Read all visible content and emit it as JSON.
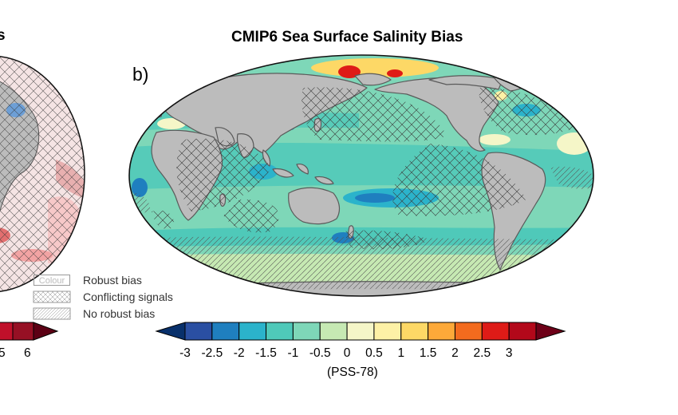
{
  "figure": {
    "left_panel_title_fragment": "s",
    "title": "CMIP6 Sea Surface Salinity Bias",
    "panel_label": "b)"
  },
  "legend": {
    "items": [
      {
        "swatch_text": "Colour",
        "label": "Robust bias",
        "pattern": "none"
      },
      {
        "swatch_text": "",
        "label": "Conflicting signals",
        "pattern": "crosshatch"
      },
      {
        "swatch_text": "",
        "label": "No robust bias",
        "pattern": "diagonal"
      }
    ]
  },
  "colorbar": {
    "ticks": [
      "-3",
      "-2.5",
      "-2",
      "-1.5",
      "-1",
      "-0.5",
      "0",
      "0.5",
      "1",
      "1.5",
      "2",
      "2.5",
      "3"
    ],
    "units": "(PSS-78)",
    "colors": [
      "#08306b",
      "#2a4fa2",
      "#1f7fbf",
      "#2bb3cb",
      "#4fc9b9",
      "#7ed7b8",
      "#c6e9b3",
      "#f5f6c8",
      "#fdf1a6",
      "#fdd866",
      "#fda939",
      "#f36b1e",
      "#de1b17",
      "#b3081a",
      "#6e0018"
    ]
  },
  "left_colorbar": {
    "tick_partial": "5",
    "tick_last": "6",
    "colors": [
      "#c0102a",
      "#961024",
      "#5c0014"
    ]
  }
}
